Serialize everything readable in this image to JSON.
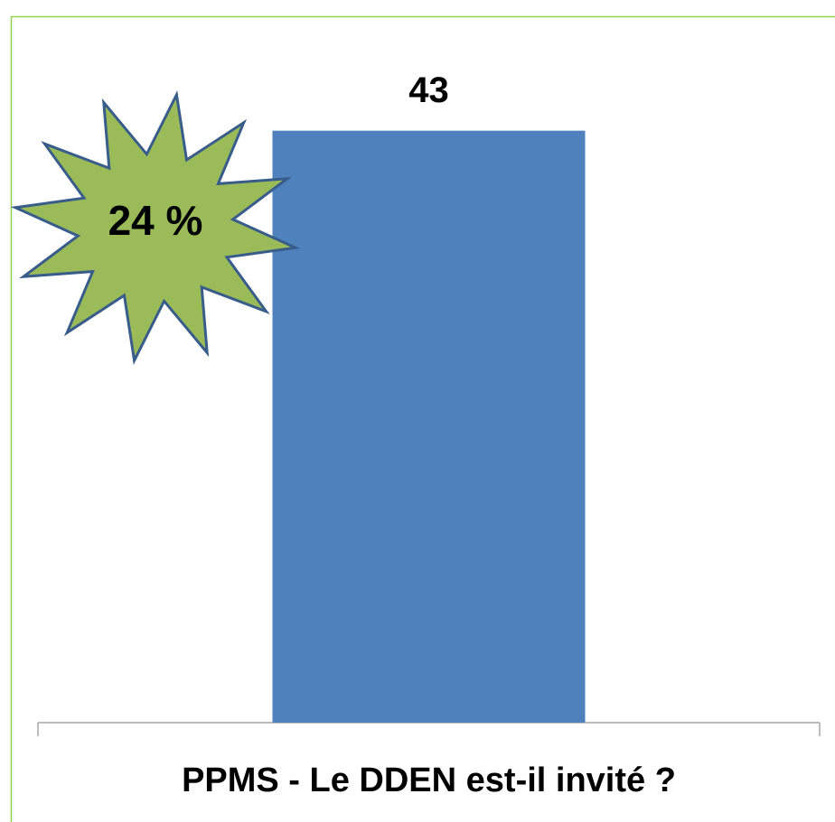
{
  "chart_data": {
    "type": "bar",
    "categories": [
      "PPMS - Le DDEN est-il invité ?"
    ],
    "values": [
      43
    ],
    "color": "#4f81bd",
    "ylim": [
      0,
      50
    ],
    "annotation": "24 %"
  }
}
